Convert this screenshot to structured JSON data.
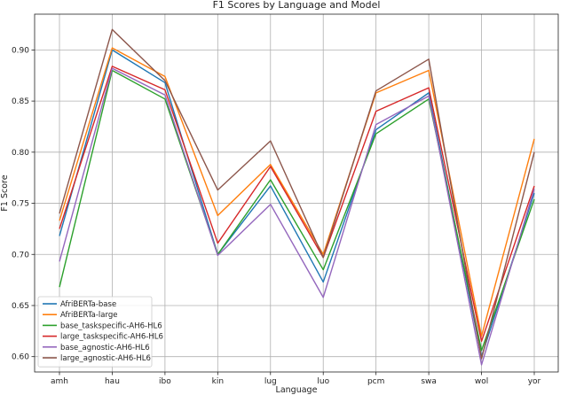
{
  "chart_data": {
    "type": "line",
    "title": "F1 Scores by Language and Model",
    "xlabel": "Language",
    "ylabel": "F1 Score",
    "categories": [
      "amh",
      "hau",
      "ibo",
      "kin",
      "lug",
      "luo",
      "pcm",
      "swa",
      "wol",
      "yor"
    ],
    "ylim": [
      0.585,
      0.935
    ],
    "yticks": [
      0.6,
      0.65,
      0.7,
      0.75,
      0.8,
      0.85,
      0.9
    ],
    "ytick_labels": [
      "0.60",
      "0.65",
      "0.70",
      "0.75",
      "0.80",
      "0.85",
      "0.90"
    ],
    "grid": true,
    "legend_position": "lower-left",
    "series": [
      {
        "name": "AfriBERTa-base",
        "color": "#1f77b4",
        "values": [
          0.718,
          0.9,
          0.868,
          0.7,
          0.767,
          0.673,
          0.822,
          0.858,
          0.6,
          0.76
        ]
      },
      {
        "name": "AfriBERTa-large",
        "color": "#ff7f0e",
        "values": [
          0.733,
          0.902,
          0.874,
          0.738,
          0.788,
          0.7,
          0.858,
          0.88,
          0.62,
          0.813
        ]
      },
      {
        "name": "base_taskspecific-AH6-HL6",
        "color": "#2ca02c",
        "values": [
          0.668,
          0.88,
          0.852,
          0.7,
          0.773,
          0.685,
          0.818,
          0.852,
          0.606,
          0.754
        ]
      },
      {
        "name": "large_taskspecific-AH6-HL6",
        "color": "#d62728",
        "values": [
          0.725,
          0.884,
          0.861,
          0.711,
          0.786,
          0.697,
          0.84,
          0.863,
          0.615,
          0.767
        ]
      },
      {
        "name": "base_agnostic-AH6-HL6",
        "color": "#9467bd",
        "values": [
          0.693,
          0.882,
          0.856,
          0.699,
          0.749,
          0.658,
          0.827,
          0.855,
          0.592,
          0.764
        ]
      },
      {
        "name": "large_agnostic-AH6-HL6",
        "color": "#8c564b",
        "values": [
          0.74,
          0.92,
          0.87,
          0.763,
          0.811,
          0.697,
          0.86,
          0.891,
          0.598,
          0.8
        ]
      }
    ]
  }
}
